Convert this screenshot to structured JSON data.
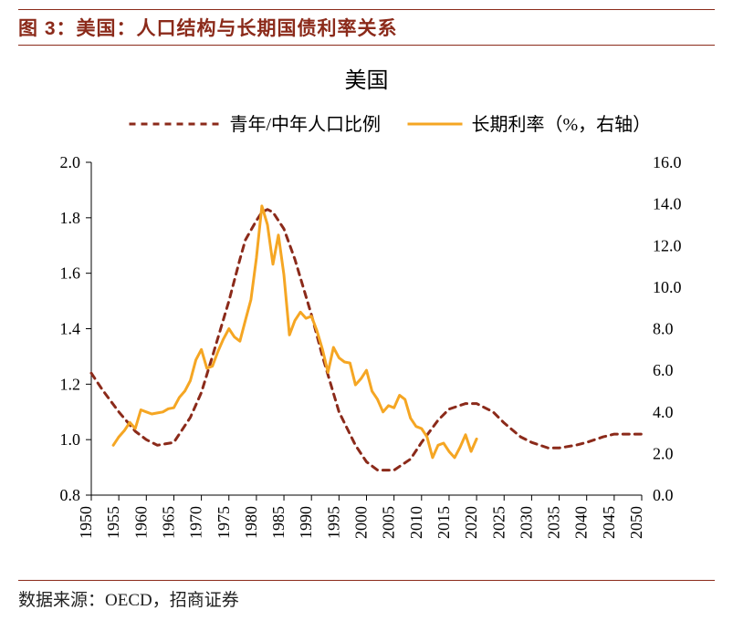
{
  "figure_label": "图 3：美国：人口结构与长期国债利率关系",
  "chart_title": "美国",
  "legend": {
    "series1": "青年/中年人口比例",
    "series2": "长期利率（%，右轴）"
  },
  "source_label": "数据来源：OECD，招商证券",
  "chart": {
    "type": "dual-axis-line",
    "background_color": "#ffffff",
    "title_fontsize": 24,
    "title_color": "#000000",
    "legend_fontsize": 20,
    "legend_color": "#000000",
    "axis_line_color": "#000000",
    "axis_line_width": 1,
    "tick_font_size": 18,
    "tick_color": "#000000",
    "x": {
      "min": 1950,
      "max": 2050,
      "ticks": [
        1950,
        1955,
        1960,
        1965,
        1970,
        1975,
        1980,
        1985,
        1990,
        1995,
        2000,
        2005,
        2010,
        2015,
        2020,
        2025,
        2030,
        2035,
        2040,
        2045,
        2050
      ],
      "label_rotation": -90
    },
    "y_left": {
      "min": 0.8,
      "max": 2.0,
      "ticks": [
        0.8,
        1.0,
        1.2,
        1.4,
        1.6,
        1.8,
        2.0
      ],
      "format": "0.0"
    },
    "y_right": {
      "min": 0.0,
      "max": 16.0,
      "ticks": [
        0.0,
        2.0,
        4.0,
        6.0,
        8.0,
        10.0,
        12.0,
        14.0,
        16.0
      ],
      "format": "0.0"
    },
    "series": [
      {
        "name": "青年/中年人口比例",
        "axis": "left",
        "color": "#8b2a1a",
        "line_width": 3,
        "dash": "7,6",
        "data": [
          [
            1950,
            1.24
          ],
          [
            1952,
            1.18
          ],
          [
            1955,
            1.1
          ],
          [
            1958,
            1.03
          ],
          [
            1960,
            1.0
          ],
          [
            1962,
            0.98
          ],
          [
            1965,
            0.99
          ],
          [
            1968,
            1.08
          ],
          [
            1970,
            1.17
          ],
          [
            1972,
            1.3
          ],
          [
            1975,
            1.5
          ],
          [
            1977,
            1.65
          ],
          [
            1978,
            1.72
          ],
          [
            1980,
            1.79
          ],
          [
            1981,
            1.82
          ],
          [
            1982,
            1.83
          ],
          [
            1983,
            1.82
          ],
          [
            1985,
            1.76
          ],
          [
            1987,
            1.65
          ],
          [
            1990,
            1.45
          ],
          [
            1992,
            1.3
          ],
          [
            1995,
            1.1
          ],
          [
            1998,
            0.98
          ],
          [
            2000,
            0.92
          ],
          [
            2002,
            0.89
          ],
          [
            2005,
            0.89
          ],
          [
            2008,
            0.93
          ],
          [
            2010,
            0.99
          ],
          [
            2013,
            1.07
          ],
          [
            2015,
            1.11
          ],
          [
            2018,
            1.13
          ],
          [
            2020,
            1.13
          ],
          [
            2023,
            1.1
          ],
          [
            2025,
            1.06
          ],
          [
            2028,
            1.01
          ],
          [
            2030,
            0.99
          ],
          [
            2033,
            0.97
          ],
          [
            2035,
            0.97
          ],
          [
            2038,
            0.98
          ],
          [
            2040,
            0.99
          ],
          [
            2043,
            1.01
          ],
          [
            2045,
            1.02
          ],
          [
            2048,
            1.02
          ],
          [
            2050,
            1.02
          ]
        ]
      },
      {
        "name": "长期利率（%，右轴）",
        "axis": "right",
        "color": "#f5a623",
        "line_width": 3,
        "dash": "",
        "data": [
          [
            1954,
            2.4
          ],
          [
            1955,
            2.8
          ],
          [
            1956,
            3.1
          ],
          [
            1957,
            3.5
          ],
          [
            1958,
            3.2
          ],
          [
            1959,
            4.1
          ],
          [
            1960,
            4.0
          ],
          [
            1961,
            3.9
          ],
          [
            1962,
            3.95
          ],
          [
            1963,
            4.0
          ],
          [
            1964,
            4.15
          ],
          [
            1965,
            4.2
          ],
          [
            1966,
            4.7
          ],
          [
            1967,
            5.0
          ],
          [
            1968,
            5.5
          ],
          [
            1969,
            6.5
          ],
          [
            1970,
            7.0
          ],
          [
            1971,
            6.1
          ],
          [
            1972,
            6.2
          ],
          [
            1973,
            6.9
          ],
          [
            1974,
            7.5
          ],
          [
            1975,
            8.0
          ],
          [
            1976,
            7.6
          ],
          [
            1977,
            7.4
          ],
          [
            1978,
            8.4
          ],
          [
            1979,
            9.4
          ],
          [
            1980,
            11.4
          ],
          [
            1981,
            13.9
          ],
          [
            1982,
            13.0
          ],
          [
            1983,
            11.1
          ],
          [
            1984,
            12.5
          ],
          [
            1985,
            10.6
          ],
          [
            1986,
            7.7
          ],
          [
            1987,
            8.4
          ],
          [
            1988,
            8.8
          ],
          [
            1989,
            8.5
          ],
          [
            1990,
            8.6
          ],
          [
            1991,
            7.9
          ],
          [
            1992,
            7.0
          ],
          [
            1993,
            5.9
          ],
          [
            1994,
            7.1
          ],
          [
            1995,
            6.6
          ],
          [
            1996,
            6.4
          ],
          [
            1997,
            6.35
          ],
          [
            1998,
            5.3
          ],
          [
            1999,
            5.6
          ],
          [
            2000,
            6.0
          ],
          [
            2001,
            5.0
          ],
          [
            2002,
            4.6
          ],
          [
            2003,
            4.0
          ],
          [
            2004,
            4.3
          ],
          [
            2005,
            4.2
          ],
          [
            2006,
            4.8
          ],
          [
            2007,
            4.6
          ],
          [
            2008,
            3.7
          ],
          [
            2009,
            3.3
          ],
          [
            2010,
            3.2
          ],
          [
            2011,
            2.8
          ],
          [
            2012,
            1.8
          ],
          [
            2013,
            2.4
          ],
          [
            2014,
            2.5
          ],
          [
            2015,
            2.1
          ],
          [
            2016,
            1.8
          ],
          [
            2017,
            2.3
          ],
          [
            2018,
            2.9
          ],
          [
            2019,
            2.1
          ],
          [
            2020,
            2.7
          ]
        ]
      }
    ]
  }
}
